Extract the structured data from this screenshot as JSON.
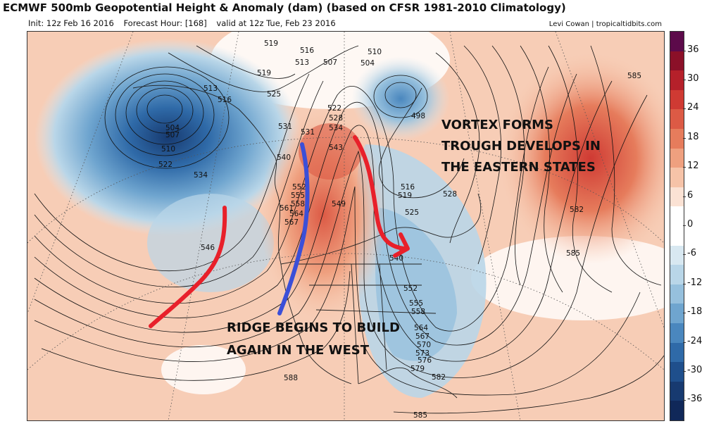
{
  "header": {
    "title": "ECMWF 500mb Geopotential Height & Anomaly (dam) (based on CFSR 1981-2010 Climatology)",
    "init": "Init: 12z Feb 16 2016",
    "forecast_hour": "Forecast Hour: [168]",
    "valid": "valid at 12z Tue, Feb 23 2016",
    "credit": "Levi Cowan | tropicaltidbits.com"
  },
  "annotations": {
    "vortex": [
      "VORTEX FORMS",
      "TROUGH DEVELOPS IN",
      "THE EASTERN STATES"
    ],
    "ridge": [
      "RIDGE BEGINS TO BUILD",
      "AGAIN IN THE WEST"
    ]
  },
  "contour_labels": [
    "519",
    "516",
    "513",
    "507",
    "510",
    "504",
    "519",
    "513",
    "516",
    "525",
    "531",
    "522",
    "528",
    "534",
    "498",
    "543",
    "507",
    "504",
    "510",
    "522",
    "534",
    "531",
    "540",
    "552",
    "555",
    "558",
    "561",
    "564",
    "567",
    "549",
    "516",
    "519",
    "528",
    "525",
    "582",
    "585",
    "540",
    "546",
    "552",
    "555",
    "558",
    "564",
    "567",
    "570",
    "573",
    "576",
    "579",
    "582",
    "588",
    "585",
    "585"
  ],
  "colorbar": {
    "ticks": [
      "36",
      "30",
      "24",
      "18",
      "12",
      "6",
      "0",
      "-6",
      "-12",
      "-18",
      "-24",
      "-30",
      "-36"
    ],
    "colors": [
      "#5c0a4a",
      "#8b1028",
      "#b5202a",
      "#cf3a33",
      "#dc5a45",
      "#e67c5c",
      "#efa07f",
      "#f6c3a8",
      "#fbe2d4",
      "#ffffff",
      "#ffffff",
      "#d8e8f1",
      "#b9d6e8",
      "#96c0dd",
      "#6fa5cf",
      "#4a87be",
      "#2f6aa8",
      "#1f4f8c",
      "#173a70",
      "#102859"
    ]
  },
  "colors": {
    "red_arrow": "#e8202a",
    "blue_arrow": "#3b4fd8"
  }
}
